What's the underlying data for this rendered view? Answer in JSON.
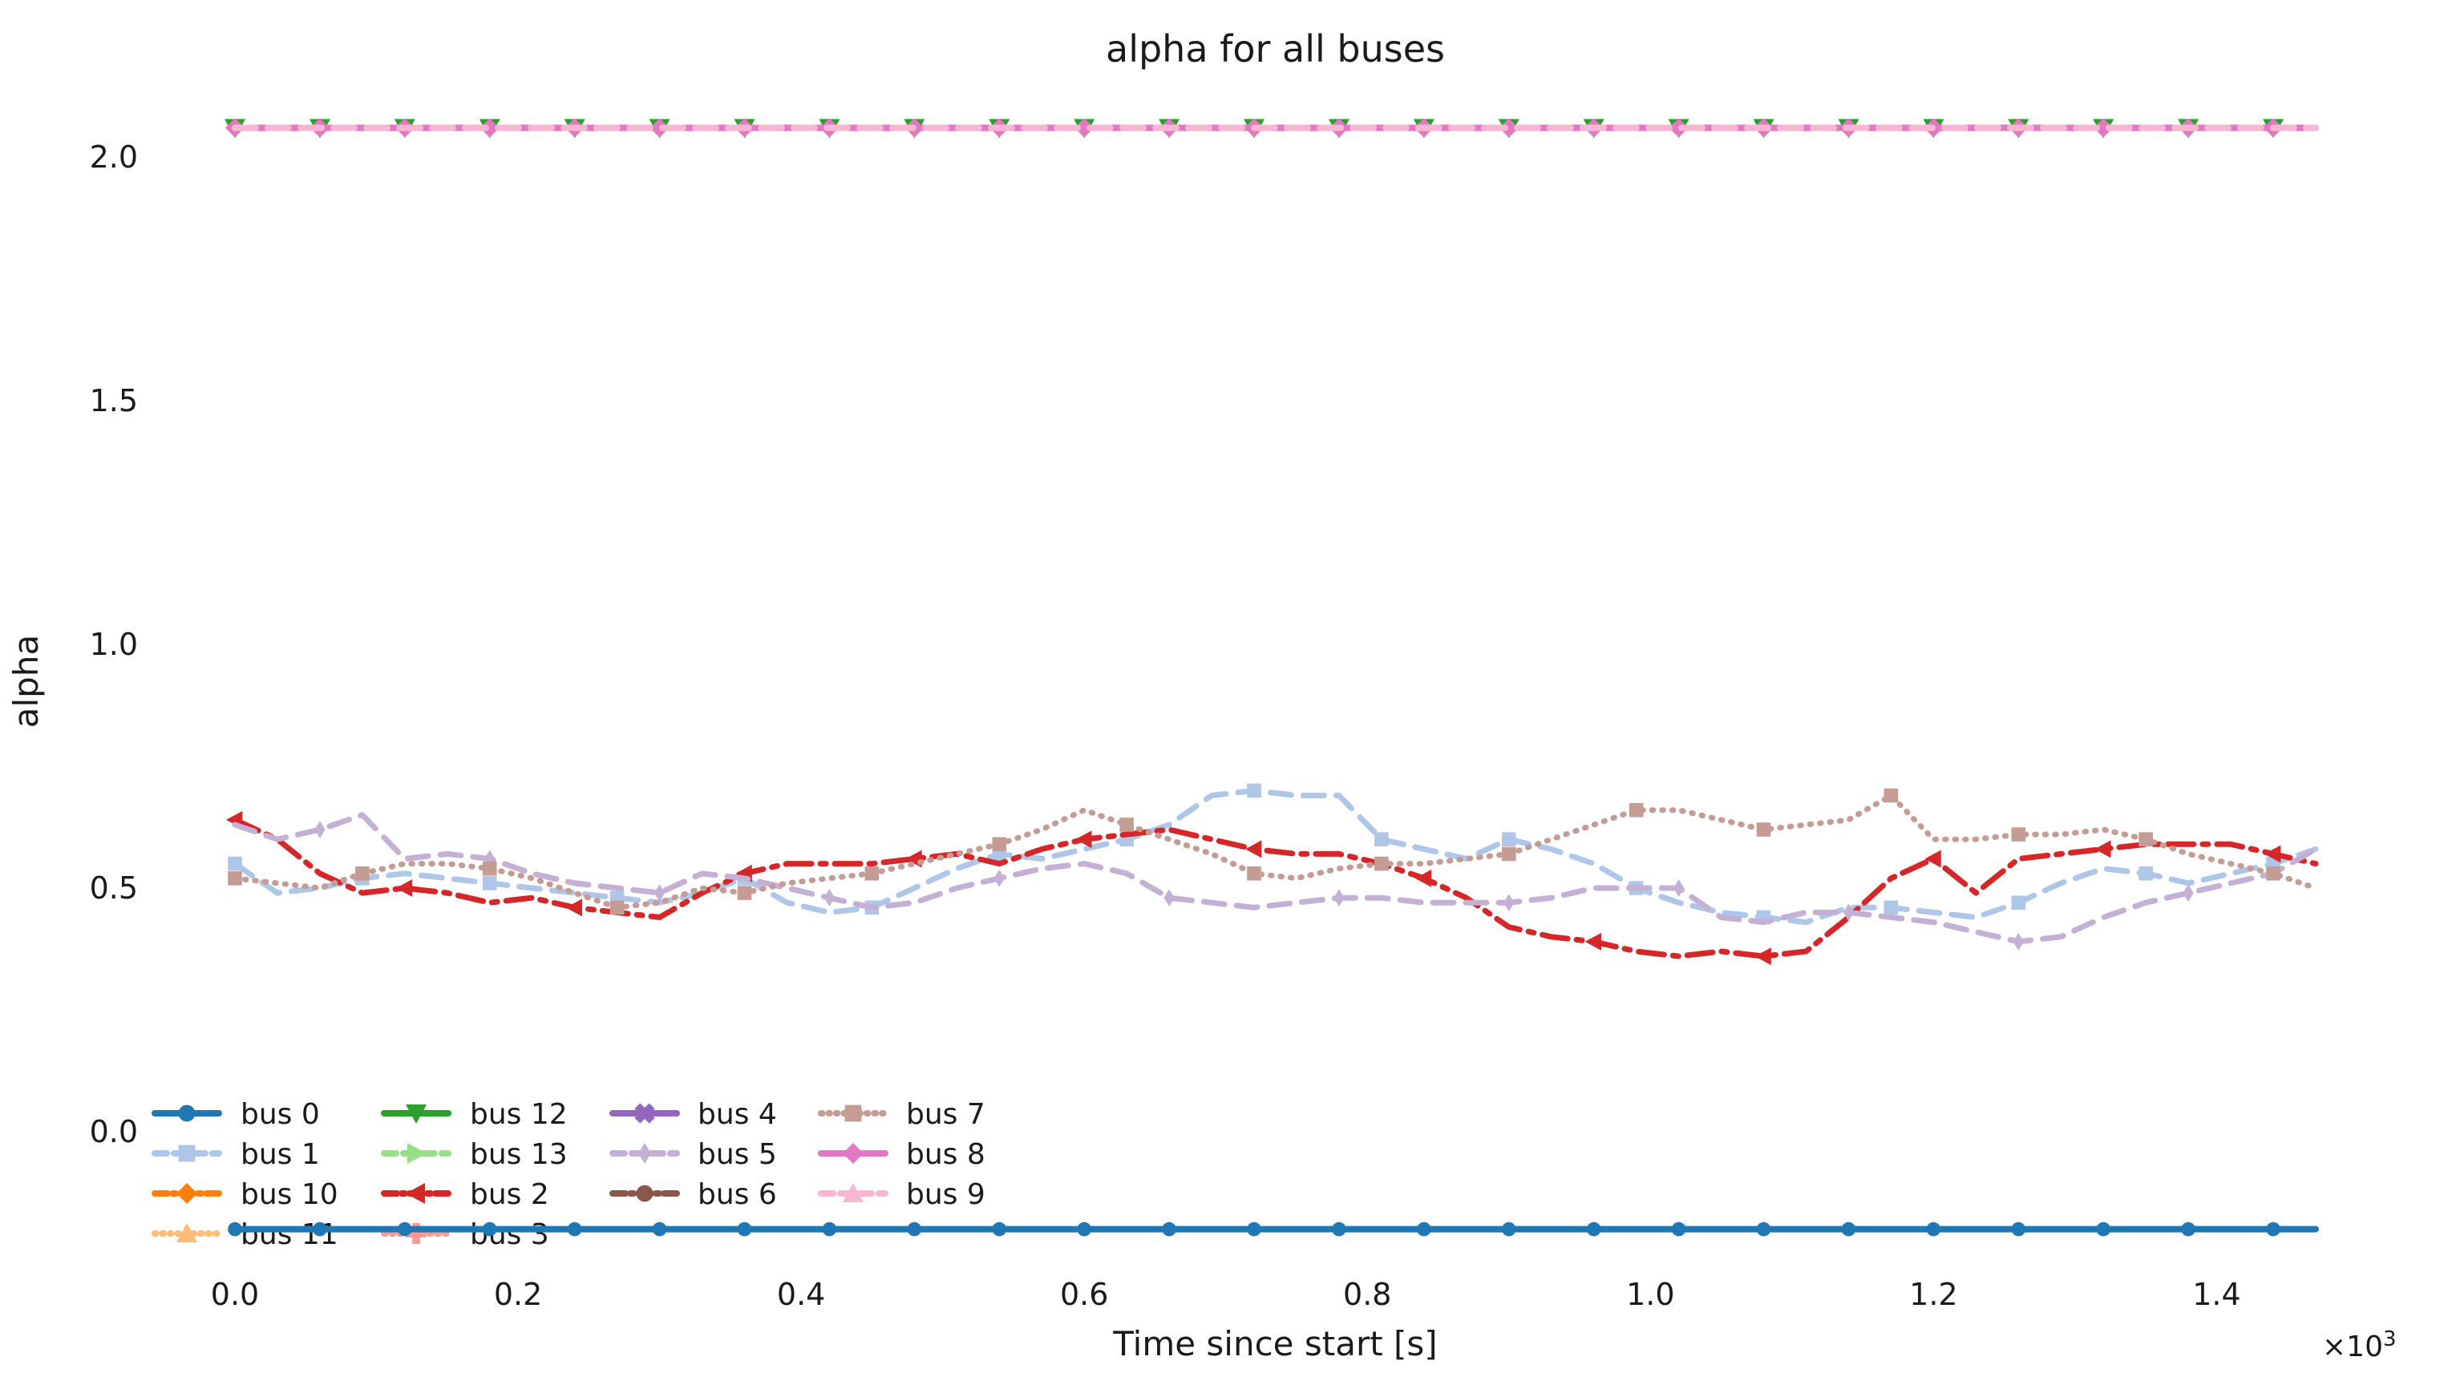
{
  "figure": {
    "background": "#ffffff",
    "text_color": "#1a1a1a"
  },
  "title": "alpha for all buses",
  "axes": {
    "xlabel": "Time since start [s]",
    "ylabel": "alpha",
    "x_offset_text": {
      "base": "×10",
      "exponent": "3"
    },
    "xticks": {
      "positions_seconds": [
        0,
        200,
        400,
        600,
        800,
        1000,
        1200,
        1400
      ],
      "labels": [
        "0.0",
        "0.2",
        "0.4",
        "0.6",
        "0.8",
        "1.0",
        "1.2",
        "1.4"
      ]
    },
    "yticks": {
      "values": [
        0.0,
        0.5,
        1.0,
        1.5,
        2.0
      ],
      "labels": [
        "0.0",
        "0.5",
        "1.0",
        "1.5",
        "2.0"
      ]
    }
  },
  "legend": {
    "columns": [
      [
        "bus 0",
        "bus 1",
        "bus 10",
        "bus 11"
      ],
      [
        "bus 12",
        "bus 13",
        "bus 2",
        "bus 3"
      ],
      [
        "bus 4",
        "bus 5",
        "bus 6"
      ],
      [
        "bus 7",
        "bus 8",
        "bus 9"
      ]
    ],
    "frame": false
  },
  "chart_data": {
    "type": "line",
    "title": "alpha for all buses",
    "xlabel": "Time since start [s]",
    "ylabel": "alpha",
    "grid": false,
    "legend_position": "lower-left inside axes, 4 columns, no frame",
    "ylim_ticks": [
      0.0,
      2.0
    ],
    "x": {
      "start_s": 0,
      "step_s": 30,
      "count": 50
    },
    "series": [
      {
        "name": "bus 0",
        "color": "#1f77b4",
        "linestyle": "solid",
        "marker": "circle",
        "width": 8,
        "markevery": 2,
        "values": {
          "constant": -0.2
        },
        "visible": true
      },
      {
        "name": "bus 1",
        "color": "#aec7e8",
        "linestyle": "dashed",
        "marker": "square",
        "width": 7,
        "markevery": 3,
        "values": {
          "points": [
            0.55,
            0.49,
            0.5,
            0.52,
            0.53,
            0.52,
            0.51,
            0.5,
            0.49,
            0.48,
            0.47,
            0.49,
            0.52,
            0.47,
            0.45,
            0.46,
            0.5,
            0.54,
            0.57,
            0.56,
            0.58,
            0.6,
            0.63,
            0.69,
            0.7,
            0.69,
            0.69,
            0.6,
            0.58,
            0.56,
            0.6,
            0.58,
            0.55,
            0.5,
            0.47,
            0.45,
            0.44,
            0.43,
            0.46,
            0.46,
            0.45,
            0.44,
            0.47,
            0.51,
            0.54,
            0.53,
            0.51,
            0.53,
            0.55,
            0.58
          ]
        },
        "visible": true
      },
      {
        "name": "bus 10",
        "color": "#ff7f0e",
        "linestyle": "dashdot",
        "marker": "diamond",
        "width": 7,
        "values": null,
        "visible": false,
        "note": "not distinguishable in plot (overlapped by other flat lines)"
      },
      {
        "name": "bus 11",
        "color": "#ffbb78",
        "linestyle": "dotted",
        "marker": "triangle-up",
        "width": 7,
        "values": null,
        "visible": false,
        "note": "not distinguishable in plot (overlapped by other flat lines)"
      },
      {
        "name": "bus 12",
        "color": "#2ca02c",
        "linestyle": "solid",
        "marker": "triangle-down",
        "width": 7,
        "markevery": 2,
        "values": {
          "constant": 2.06
        },
        "visible": "marker tips only, behind bus 8 / bus 9 line"
      },
      {
        "name": "bus 13",
        "color": "#98df8a",
        "linestyle": "dashed",
        "marker": "triangle-right",
        "width": 7,
        "values": null,
        "visible": false,
        "note": "not distinguishable in plot (overlapped by other flat lines)"
      },
      {
        "name": "bus 2",
        "color": "#d62728",
        "linestyle": "dashdot",
        "marker": "triangle-left",
        "width": 7,
        "markevery": 4,
        "values": {
          "points": [
            0.64,
            0.6,
            0.53,
            0.49,
            0.5,
            0.49,
            0.47,
            0.48,
            0.46,
            0.45,
            0.44,
            0.49,
            0.53,
            0.55,
            0.55,
            0.55,
            0.56,
            0.57,
            0.55,
            0.58,
            0.6,
            0.61,
            0.62,
            0.6,
            0.58,
            0.57,
            0.57,
            0.55,
            0.52,
            0.48,
            0.42,
            0.4,
            0.39,
            0.37,
            0.36,
            0.37,
            0.36,
            0.37,
            0.44,
            0.52,
            0.56,
            0.49,
            0.56,
            0.57,
            0.58,
            0.59,
            0.59,
            0.59,
            0.57,
            0.55
          ]
        },
        "visible": true
      },
      {
        "name": "bus 3",
        "color": "#ff9896",
        "linestyle": "dotted",
        "marker": "plus",
        "width": 7,
        "values": null,
        "visible": false,
        "note": "not distinguishable in plot (overlapped by other flat lines)"
      },
      {
        "name": "bus 4",
        "color": "#9467bd",
        "linestyle": "solid",
        "marker": "x",
        "width": 7,
        "values": null,
        "visible": false,
        "note": "not distinguishable in plot (overlapped by other flat lines)"
      },
      {
        "name": "bus 5",
        "color": "#c5b0d5",
        "linestyle": "dashed",
        "marker": "thin-diamond",
        "width": 7,
        "markevery": 4,
        "marker_offset": 2,
        "values": {
          "points": [
            0.63,
            0.6,
            0.62,
            0.65,
            0.56,
            0.57,
            0.56,
            0.53,
            0.51,
            0.5,
            0.49,
            0.53,
            0.52,
            0.5,
            0.48,
            0.46,
            0.47,
            0.5,
            0.52,
            0.54,
            0.55,
            0.53,
            0.48,
            0.47,
            0.46,
            0.47,
            0.48,
            0.48,
            0.47,
            0.47,
            0.47,
            0.48,
            0.5,
            0.5,
            0.5,
            0.44,
            0.43,
            0.45,
            0.45,
            0.44,
            0.43,
            0.41,
            0.39,
            0.4,
            0.44,
            0.47,
            0.49,
            0.51,
            0.53,
            0.58
          ]
        },
        "visible": true
      },
      {
        "name": "bus 6",
        "color": "#8c564b",
        "linestyle": "dashdot",
        "marker": "circle",
        "width": 7,
        "values": null,
        "visible": false,
        "note": "not distinguishable in plot (overlapped by other flat lines)"
      },
      {
        "name": "bus 7",
        "color": "#c49c94",
        "linestyle": "dotted",
        "marker": "square",
        "width": 7,
        "markevery": 3,
        "values": {
          "points": [
            0.52,
            0.51,
            0.5,
            0.53,
            0.55,
            0.55,
            0.54,
            0.52,
            0.49,
            0.46,
            0.47,
            0.5,
            0.49,
            0.51,
            0.52,
            0.53,
            0.55,
            0.57,
            0.59,
            0.62,
            0.66,
            0.63,
            0.6,
            0.57,
            0.53,
            0.52,
            0.54,
            0.55,
            0.55,
            0.56,
            0.57,
            0.6,
            0.63,
            0.66,
            0.66,
            0.64,
            0.62,
            0.63,
            0.64,
            0.69,
            0.6,
            0.6,
            0.61,
            0.61,
            0.62,
            0.6,
            0.57,
            0.55,
            0.53,
            0.5
          ]
        },
        "visible": true
      },
      {
        "name": "bus 8",
        "color": "#e377c2",
        "linestyle": "solid",
        "marker": "diamond",
        "width": 8,
        "markevery": 2,
        "values": {
          "constant": 2.06
        },
        "visible": true
      },
      {
        "name": "bus 9",
        "color": "#f7b6d2",
        "linestyle": "dashed",
        "marker": "triangle-up",
        "width": 8,
        "values": {
          "constant": 2.06
        },
        "visible": true,
        "note": "drawn over bus 8; dash gaps reveal the darker pink of bus 8"
      }
    ]
  }
}
